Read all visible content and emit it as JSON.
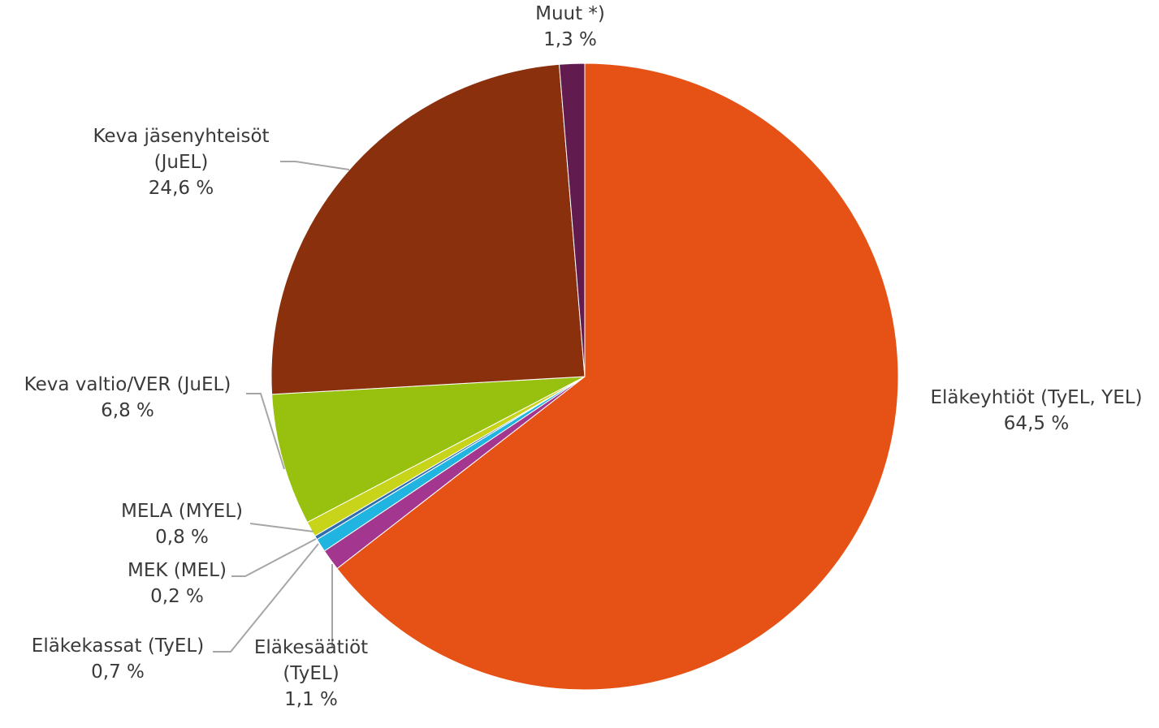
{
  "chart_data": {
    "type": "pie",
    "title": "",
    "slices": [
      {
        "label_lines": [
          "Eläkeyhtiöt (TyEL, YEL)"
        ],
        "value": 64.5,
        "value_text": "64,5 %",
        "color": "#E65215"
      },
      {
        "label_lines": [
          "Eläkesäätiöt",
          "(TyEL)"
        ],
        "value": 1.1,
        "value_text": "1,1 %",
        "color": "#A3378F"
      },
      {
        "label_lines": [
          "Eläkekassat (TyEL)"
        ],
        "value": 0.7,
        "value_text": "0,7 %",
        "color": "#20B4E0"
      },
      {
        "label_lines": [
          "MEK (MEL)"
        ],
        "value": 0.2,
        "value_text": "0,2 %",
        "color": "#2E6DB0"
      },
      {
        "label_lines": [
          "MELA (MYEL)"
        ],
        "value": 0.8,
        "value_text": "0,8 %",
        "color": "#C8D41A"
      },
      {
        "label_lines": [
          "Keva valtio/VER (JuEL)"
        ],
        "value": 6.8,
        "value_text": "6,8 %",
        "color": "#97C00F"
      },
      {
        "label_lines": [
          "Keva jäsenyhteisöt",
          "(JuEL)"
        ],
        "value": 24.6,
        "value_text": "24,6 %",
        "color": "#8A300D"
      },
      {
        "label_lines": [
          "Muut *)"
        ],
        "value": 1.3,
        "value_text": "1,3 %",
        "color": "#611B4F"
      }
    ]
  }
}
